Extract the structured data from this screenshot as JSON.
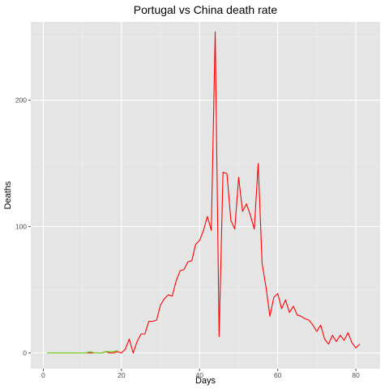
{
  "chart_data": {
    "type": "line",
    "title": "Portugal vs China death rate",
    "xlabel": "Days",
    "ylabel": "Deaths",
    "xlim": [
      -3.2,
      86.2
    ],
    "ylim": [
      -12.5,
      262
    ],
    "x_ticks": [
      0,
      20,
      40,
      60,
      80
    ],
    "y_ticks": [
      0,
      100,
      200
    ],
    "x_tick_labels": [
      "0",
      "20",
      "40",
      "60",
      "80"
    ],
    "y_tick_labels": [
      "0",
      "100",
      "200"
    ],
    "grid": true,
    "legend": "none",
    "colors": {
      "panel": "#e5e5e5",
      "grid_major": "#ffffff",
      "grid_minor": "#f0f0f0",
      "tick": "#4d4d4d"
    },
    "series": [
      {
        "color": "#ff0000",
        "points": [
          [
            1,
            0
          ],
          [
            2,
            0
          ],
          [
            3,
            0
          ],
          [
            4,
            0
          ],
          [
            5,
            0
          ],
          [
            6,
            0
          ],
          [
            7,
            0
          ],
          [
            8,
            0
          ],
          [
            9,
            0
          ],
          [
            10,
            0
          ],
          [
            11,
            0
          ],
          [
            12,
            0
          ],
          [
            13,
            0
          ],
          [
            14,
            0
          ],
          [
            15,
            0
          ],
          [
            16,
            1
          ],
          [
            17,
            0
          ],
          [
            18,
            0
          ],
          [
            19,
            1
          ],
          [
            20,
            0
          ],
          [
            21,
            3
          ],
          [
            22,
            11
          ],
          [
            23,
            0
          ],
          [
            24,
            9
          ],
          [
            25,
            15
          ],
          [
            26,
            15
          ],
          [
            27,
            25
          ],
          [
            28,
            25
          ],
          [
            29,
            26
          ],
          [
            30,
            38
          ],
          [
            31,
            43
          ],
          [
            32,
            46
          ],
          [
            33,
            45
          ],
          [
            34,
            57
          ],
          [
            35,
            65
          ],
          [
            36,
            66
          ],
          [
            37,
            72
          ],
          [
            38,
            73
          ],
          [
            39,
            86
          ],
          [
            40,
            89
          ],
          [
            41,
            97
          ],
          [
            42,
            108
          ],
          [
            43,
            97
          ],
          [
            44,
            254
          ],
          [
            45,
            13
          ],
          [
            46,
            143
          ],
          [
            47,
            142
          ],
          [
            48,
            105
          ],
          [
            49,
            98
          ],
          [
            50,
            139
          ],
          [
            51,
            112
          ],
          [
            52,
            118
          ],
          [
            53,
            109
          ],
          [
            54,
            98
          ],
          [
            55,
            150
          ],
          [
            56,
            71
          ],
          [
            57,
            52
          ],
          [
            58,
            29
          ],
          [
            59,
            44
          ],
          [
            60,
            47
          ],
          [
            61,
            35
          ],
          [
            62,
            42
          ],
          [
            63,
            32
          ],
          [
            64,
            37
          ],
          [
            65,
            30
          ],
          [
            66,
            29
          ],
          [
            67,
            27
          ],
          [
            68,
            26
          ],
          [
            69,
            22
          ],
          [
            70,
            17
          ],
          [
            71,
            22
          ],
          [
            72,
            11
          ],
          [
            73,
            7
          ],
          [
            74,
            14
          ],
          [
            75,
            9
          ],
          [
            76,
            14
          ],
          [
            77,
            10
          ],
          [
            78,
            16
          ],
          [
            79,
            8
          ],
          [
            80,
            4
          ],
          [
            81,
            7
          ]
        ]
      },
      {
        "color": "#66cc00",
        "points": [
          [
            1,
            0
          ],
          [
            2,
            0
          ],
          [
            3,
            0
          ],
          [
            4,
            0
          ],
          [
            5,
            0
          ],
          [
            6,
            0
          ],
          [
            7,
            0
          ],
          [
            8,
            0
          ],
          [
            9,
            0
          ],
          [
            10,
            0
          ],
          [
            11,
            0
          ],
          [
            12,
            1
          ],
          [
            13,
            0
          ],
          [
            14,
            0
          ],
          [
            15,
            0
          ],
          [
            16,
            1
          ],
          [
            17,
            1
          ],
          [
            18,
            1
          ],
          [
            19,
            2
          ]
        ]
      }
    ]
  }
}
